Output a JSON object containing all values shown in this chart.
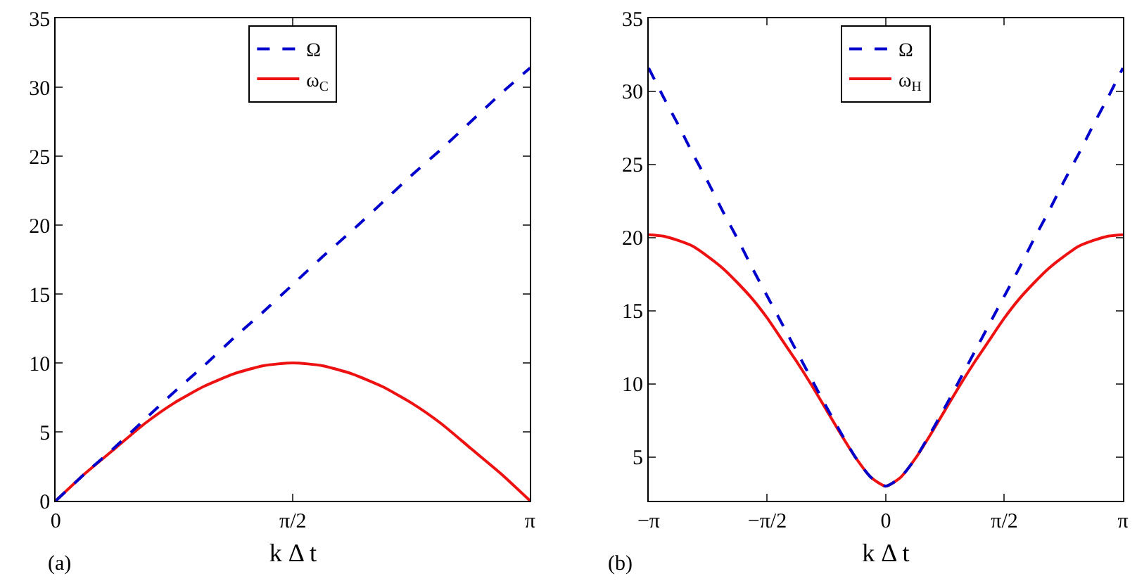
{
  "chart_data": [
    {
      "type": "line",
      "xlabel": "k Δ t",
      "annotations": [
        "(a)"
      ],
      "legend": "top",
      "x": [
        0,
        0.196,
        0.393,
        0.589,
        0.785,
        0.982,
        1.178,
        1.374,
        1.571,
        1.767,
        1.963,
        2.16,
        2.356,
        2.553,
        2.749,
        2.945,
        3.142
      ],
      "xlim": [
        0,
        3.142
      ],
      "xticks": [
        0,
        {
          "value": 1.571,
          "label": "π/2"
        },
        {
          "value": 3.142,
          "label": "π"
        }
      ],
      "ylim": [
        0,
        35
      ],
      "yticks": [
        0,
        5,
        10,
        15,
        20,
        25,
        30,
        35
      ],
      "series": [
        {
          "name": "Ω",
          "color": "#0000cc",
          "line_style": "dashed",
          "values": [
            0,
            2.0,
            3.9,
            5.9,
            7.9,
            9.8,
            11.8,
            13.7,
            15.7,
            17.7,
            19.6,
            21.6,
            23.6,
            25.5,
            27.5,
            29.5,
            31.4
          ]
        },
        {
          "name": "ω$_{C}$",
          "color": "#ee1111",
          "line_style": "solid",
          "values": [
            0,
            2.0,
            3.8,
            5.6,
            7.1,
            8.3,
            9.2,
            9.8,
            10.0,
            9.8,
            9.2,
            8.3,
            7.1,
            5.6,
            3.8,
            2.0,
            0
          ]
        }
      ]
    },
    {
      "type": "line",
      "xlabel": "k Δ t",
      "annotations": [
        "(b)"
      ],
      "legend": "top",
      "x": [
        -3.142,
        -2.945,
        -2.749,
        -2.553,
        -2.356,
        -2.16,
        -1.963,
        -1.767,
        -1.571,
        -1.374,
        -1.178,
        -0.982,
        -0.785,
        -0.589,
        -0.393,
        -0.196,
        0,
        0.196,
        0.393,
        0.589,
        0.785,
        0.982,
        1.178,
        1.374,
        1.571,
        1.767,
        1.963,
        2.16,
        2.356,
        2.553,
        2.749,
        2.945,
        3.142
      ],
      "xlim": [
        -3.142,
        3.142
      ],
      "xticks": [
        {
          "value": -3.142,
          "label": "−π"
        },
        {
          "value": -1.571,
          "label": "−π/2"
        },
        0,
        {
          "value": 1.571,
          "label": "π/2"
        },
        {
          "value": 3.142,
          "label": "π"
        }
      ],
      "ylim": [
        2,
        35
      ],
      "yticks": [
        5,
        10,
        15,
        20,
        25,
        30,
        35
      ],
      "series": [
        {
          "name": "Ω",
          "color": "#0000cc",
          "line_style": "dashed",
          "values": [
            31.6,
            29.6,
            27.7,
            25.7,
            23.8,
            21.8,
            19.9,
            17.9,
            16.0,
            14.1,
            12.2,
            10.3,
            8.4,
            6.6,
            4.9,
            3.6,
            3.0,
            3.6,
            4.9,
            6.6,
            8.4,
            10.3,
            12.2,
            14.1,
            16.0,
            17.9,
            19.9,
            21.8,
            23.8,
            25.7,
            27.7,
            29.6,
            31.6
          ]
        },
        {
          "name": "ω$_{H}$",
          "color": "#ee1111",
          "line_style": "solid",
          "values": [
            20.2,
            20.1,
            19.8,
            19.4,
            18.7,
            17.9,
            16.9,
            15.8,
            14.5,
            13.0,
            11.5,
            9.9,
            8.2,
            6.5,
            4.9,
            3.6,
            3.0,
            3.6,
            4.9,
            6.5,
            8.2,
            9.9,
            11.5,
            13.0,
            14.5,
            15.8,
            16.9,
            17.9,
            18.7,
            19.4,
            19.8,
            20.1,
            20.2
          ]
        }
      ]
    }
  ]
}
